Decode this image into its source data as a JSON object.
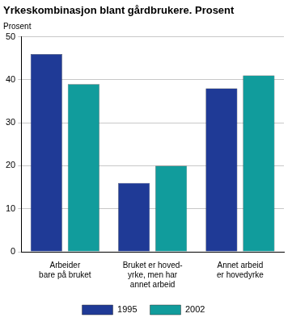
{
  "chart_data": {
    "type": "bar",
    "title": "Yrkeskombinasjon blant gårdbrukere. Prosent",
    "y_label": "Prosent",
    "categories": [
      [
        "Arbeider",
        "bare på bruket"
      ],
      [
        "Bruket er hoved-",
        "yrke, men har",
        "annet arbeid"
      ],
      [
        "Annet arbeid",
        "er hovedyrke"
      ]
    ],
    "series": [
      {
        "name": "1995",
        "color": "#1f3a96",
        "values": [
          46,
          16,
          38
        ]
      },
      {
        "name": "2002",
        "color": "#119c9c",
        "values": [
          39,
          20,
          41
        ]
      }
    ],
    "ylim": [
      0,
      50
    ],
    "yticks": [
      0,
      10,
      20,
      30,
      40,
      50
    ],
    "grid": true,
    "legend": "bottom"
  }
}
